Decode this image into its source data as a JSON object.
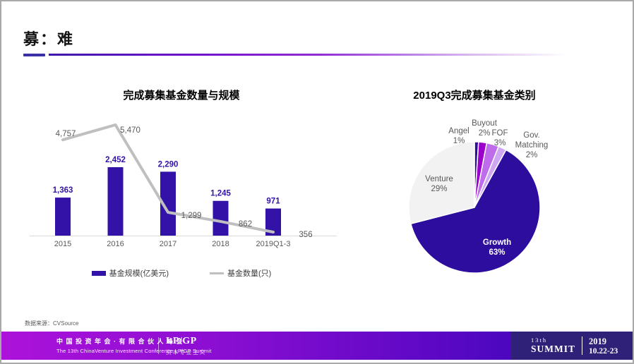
{
  "slide": {
    "title": "募：难",
    "source": "数据来源：CVSource"
  },
  "chart_data": [
    {
      "type": "bar",
      "title": "完成募集基金数量与规模",
      "categories": [
        "2015",
        "2016",
        "2017",
        "2018",
        "2019Q1-3"
      ],
      "series": [
        {
          "name": "基金规模(亿美元)",
          "kind": "bar",
          "values": [
            1363,
            2452,
            2290,
            1245,
            971
          ],
          "color": "#3312a8"
        },
        {
          "name": "基金数量(只)",
          "kind": "line",
          "values": [
            4757,
            5470,
            1299,
            862,
            356
          ],
          "color": "#bfbfbf"
        }
      ],
      "legend_position": "bottom",
      "grid": false,
      "value_labels": true
    },
    {
      "type": "pie",
      "title": "2019Q3完成募集基金类别",
      "start_angle_deg": 0,
      "direction": "clockwise",
      "slices": [
        {
          "label": "Angel",
          "pct": 1,
          "color": "#2d0d9e"
        },
        {
          "label": "Buyout",
          "pct": 2,
          "color": "#9c00cc"
        },
        {
          "label": "FOF",
          "pct": 3,
          "color": "#be6bec"
        },
        {
          "label": "Gov. Matching",
          "pct": 2,
          "color": "#cfa6f2"
        },
        {
          "label": "Growth",
          "pct": 63,
          "color": "#2d0d9e"
        },
        {
          "label": "Venture",
          "pct": 29,
          "color": "#f2f2f2"
        }
      ]
    }
  ],
  "footer": {
    "cn_title": "中国投资年会·有限合伙人峰会",
    "en_title": "The 13th ChinaVenture Investment Conference LP/GP Summit",
    "logo": "LP/GP",
    "logo_tagline": "资本专业主义",
    "edition_line1": "13th",
    "edition_line2": "SUMMIT",
    "year": "2019",
    "dates": "10.22-23"
  },
  "colors": {
    "bar": "#3312a8",
    "line": "#bfbfbf",
    "axis": "#d9d9d9",
    "label_gray": "#595959",
    "footer_gradient_start": "#ac12da",
    "footer_gradient_end": "#4a07be",
    "footer_block": "#2f2178"
  }
}
